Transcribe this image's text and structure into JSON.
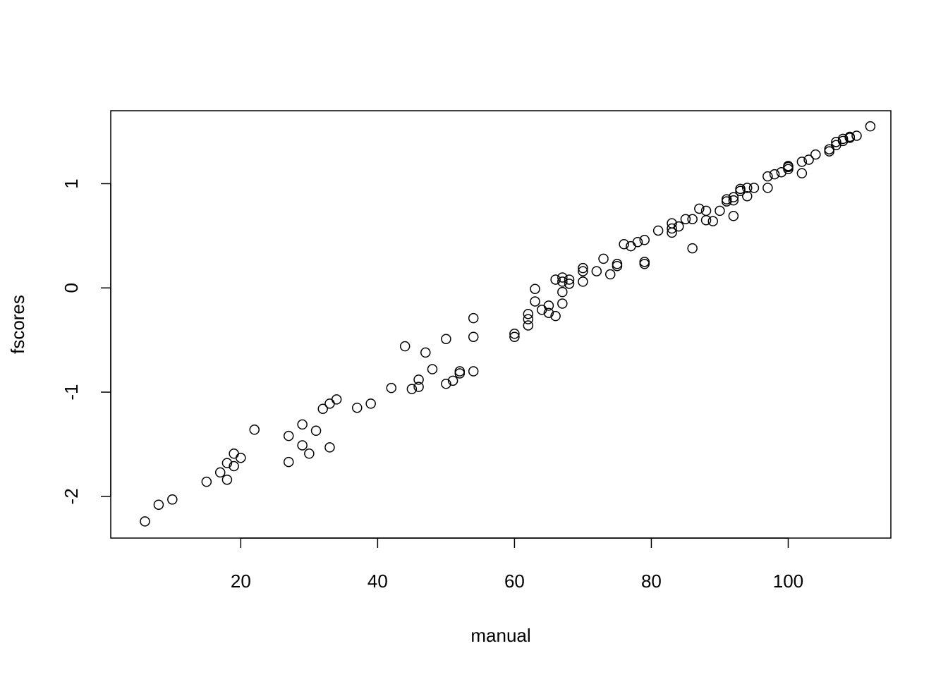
{
  "chart_data": {
    "type": "scatter",
    "title": "",
    "xlabel": "manual",
    "ylabel": "fscores",
    "xlim": [
      1,
      115
    ],
    "ylim": [
      -2.4,
      1.7
    ],
    "x_ticks": [
      20,
      40,
      60,
      80,
      100
    ],
    "x_tick_labels": [
      "20",
      "40",
      "60",
      "80",
      "100"
    ],
    "y_ticks": [
      -2,
      -1,
      0,
      1
    ],
    "y_tick_labels": [
      "-2",
      "-1",
      "0",
      "1"
    ],
    "grid": false,
    "legend": "none",
    "marker": "open-circle",
    "colors": {
      "marker": "#000000",
      "axes": "#000000",
      "background": "#ffffff"
    },
    "points": [
      [
        6,
        -2.24
      ],
      [
        8,
        -2.08
      ],
      [
        10,
        -2.03
      ],
      [
        15,
        -1.86
      ],
      [
        17,
        -1.77
      ],
      [
        18,
        -1.84
      ],
      [
        18,
        -1.68
      ],
      [
        19,
        -1.59
      ],
      [
        19,
        -1.71
      ],
      [
        20,
        -1.63
      ],
      [
        22,
        -1.36
      ],
      [
        27,
        -1.42
      ],
      [
        27,
        -1.67
      ],
      [
        29,
        -1.31
      ],
      [
        29,
        -1.51
      ],
      [
        30,
        -1.59
      ],
      [
        31,
        -1.37
      ],
      [
        32,
        -1.16
      ],
      [
        33,
        -1.11
      ],
      [
        33,
        -1.53
      ],
      [
        34,
        -1.07
      ],
      [
        37,
        -1.15
      ],
      [
        39,
        -1.11
      ],
      [
        42,
        -0.96
      ],
      [
        44,
        -0.56
      ],
      [
        45,
        -0.97
      ],
      [
        46,
        -0.88
      ],
      [
        46,
        -0.95
      ],
      [
        47,
        -0.62
      ],
      [
        48,
        -0.78
      ],
      [
        50,
        -0.49
      ],
      [
        50,
        -0.92
      ],
      [
        51,
        -0.89
      ],
      [
        52,
        -0.8
      ],
      [
        52,
        -0.82
      ],
      [
        54,
        -0.29
      ],
      [
        54,
        -0.47
      ],
      [
        54,
        -0.8
      ],
      [
        60,
        -0.44
      ],
      [
        60,
        -0.47
      ],
      [
        62,
        -0.25
      ],
      [
        62,
        -0.3
      ],
      [
        62,
        -0.36
      ],
      [
        63,
        -0.01
      ],
      [
        63,
        -0.13
      ],
      [
        64,
        -0.21
      ],
      [
        65,
        -0.17
      ],
      [
        65,
        -0.24
      ],
      [
        66,
        0.08
      ],
      [
        66,
        -0.27
      ],
      [
        67,
        0.1
      ],
      [
        67,
        0.06
      ],
      [
        67,
        -0.04
      ],
      [
        67,
        -0.15
      ],
      [
        68,
        0.08
      ],
      [
        68,
        0.04
      ],
      [
        70,
        0.19
      ],
      [
        70,
        0.16
      ],
      [
        70,
        0.06
      ],
      [
        72,
        0.16
      ],
      [
        73,
        0.28
      ],
      [
        74,
        0.13
      ],
      [
        75,
        0.23
      ],
      [
        75,
        0.21
      ],
      [
        76,
        0.42
      ],
      [
        77,
        0.4
      ],
      [
        78,
        0.44
      ],
      [
        79,
        0.46
      ],
      [
        79,
        0.25
      ],
      [
        79,
        0.23
      ],
      [
        81,
        0.55
      ],
      [
        83,
        0.62
      ],
      [
        83,
        0.57
      ],
      [
        83,
        0.53
      ],
      [
        84,
        0.59
      ],
      [
        85,
        0.66
      ],
      [
        86,
        0.66
      ],
      [
        86,
        0.38
      ],
      [
        87,
        0.76
      ],
      [
        88,
        0.74
      ],
      [
        88,
        0.65
      ],
      [
        89,
        0.64
      ],
      [
        90,
        0.74
      ],
      [
        91,
        0.83
      ],
      [
        91,
        0.85
      ],
      [
        92,
        0.87
      ],
      [
        92,
        0.84
      ],
      [
        92,
        0.69
      ],
      [
        93,
        0.93
      ],
      [
        93,
        0.95
      ],
      [
        94,
        0.96
      ],
      [
        94,
        0.88
      ],
      [
        95,
        0.96
      ],
      [
        97,
        1.07
      ],
      [
        97,
        0.96
      ],
      [
        98,
        1.09
      ],
      [
        99,
        1.11
      ],
      [
        100,
        1.14
      ],
      [
        100,
        1.16
      ],
      [
        100,
        1.17
      ],
      [
        102,
        1.21
      ],
      [
        102,
        1.1
      ],
      [
        103,
        1.23
      ],
      [
        104,
        1.28
      ],
      [
        106,
        1.31
      ],
      [
        106,
        1.33
      ],
      [
        107,
        1.37
      ],
      [
        107,
        1.4
      ],
      [
        108,
        1.41
      ],
      [
        108,
        1.43
      ],
      [
        109,
        1.44
      ],
      [
        109,
        1.45
      ],
      [
        110,
        1.46
      ],
      [
        112,
        1.55
      ]
    ]
  }
}
